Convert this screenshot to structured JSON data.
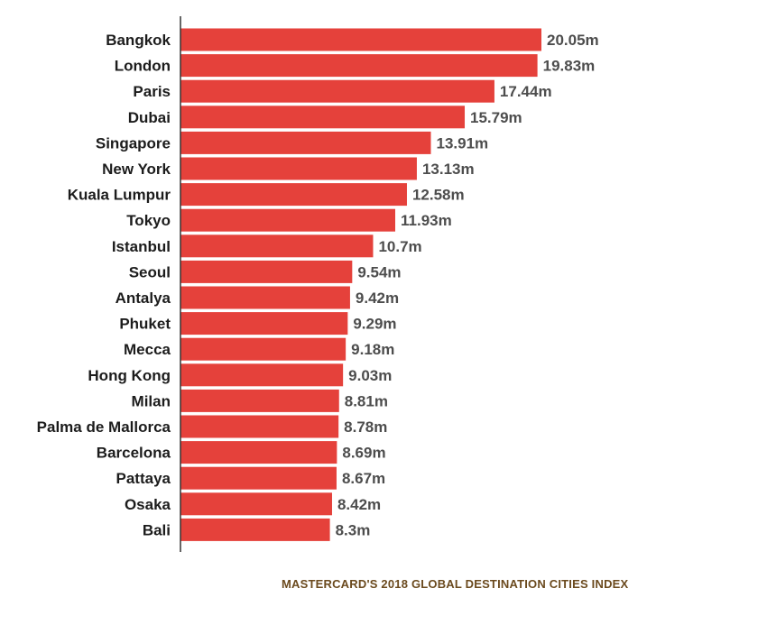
{
  "chart_data": {
    "type": "bar",
    "orientation": "horizontal",
    "categories": [
      "Bangkok",
      "London",
      "Paris",
      "Dubai",
      "Singapore",
      "New York",
      "Kuala Lumpur",
      "Tokyo",
      "Istanbul",
      "Seoul",
      "Antalya",
      "Phuket",
      "Mecca",
      "Hong Kong",
      "Milan",
      "Palma de Mallorca",
      "Barcelona",
      "Pattaya",
      "Osaka",
      "Bali"
    ],
    "values": [
      20.05,
      19.83,
      17.44,
      15.79,
      13.91,
      13.13,
      12.58,
      11.93,
      10.7,
      9.54,
      9.42,
      9.29,
      9.18,
      9.03,
      8.81,
      8.78,
      8.69,
      8.67,
      8.42,
      8.3
    ],
    "value_labels": [
      "20.05m",
      "19.83m",
      "17.44m",
      "15.79m",
      "13.91m",
      "13.13m",
      "12.58m",
      "11.93m",
      "10.7m",
      "9.54m",
      "9.42m",
      "9.29m",
      "9.18m",
      "9.03m",
      "8.81m",
      "8.78m",
      "8.69m",
      "8.67m",
      "8.42m",
      "8.3m"
    ],
    "xlim": [
      0,
      20.05
    ],
    "grid": false,
    "legend": "none",
    "bar_color": "#e5413b",
    "axis_color": "#333333"
  },
  "source_note": "MASTERCARD'S 2018 GLOBAL DESTINATION CITIES INDEX"
}
